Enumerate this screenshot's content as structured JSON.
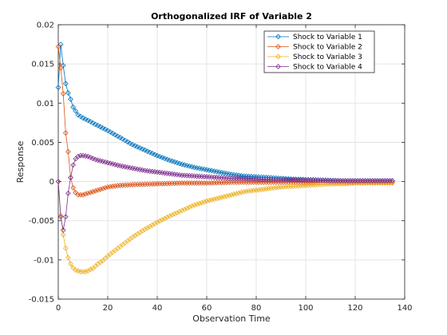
{
  "chart_data": {
    "type": "line",
    "title": "Orthogonalized IRF of Variable 2",
    "xlabel": "Observation Time",
    "ylabel": "Response",
    "xlim": [
      0,
      140
    ],
    "ylim": [
      -0.015,
      0.02
    ],
    "xticks": [
      0,
      20,
      40,
      60,
      80,
      100,
      120,
      140
    ],
    "xtick_labels": [
      "0",
      "20",
      "40",
      "60",
      "80",
      "100",
      "120",
      "140"
    ],
    "yticks": [
      -0.015,
      -0.01,
      -0.005,
      0,
      0.005,
      0.01,
      0.015,
      0.02
    ],
    "ytick_labels": [
      "-0.015",
      "-0.01",
      "-0.005",
      "0",
      "0.005",
      "0.01",
      "0.015",
      "0.02"
    ],
    "grid": true,
    "legend_position": "top-right",
    "marker": "diamond",
    "series": [
      {
        "name": "Shock to Variable 1",
        "color": "#0072BD",
        "x": [
          0,
          1,
          2,
          3,
          4,
          5,
          6,
          8,
          10,
          12,
          15,
          20,
          25,
          30,
          35,
          40,
          45,
          50,
          55,
          60,
          65,
          70,
          75,
          80,
          85,
          90,
          95,
          100,
          105,
          110,
          115,
          120,
          125,
          130,
          135
        ],
        "y": [
          0.012,
          0.0175,
          0.0148,
          0.0125,
          0.0113,
          0.0105,
          0.0095,
          0.0085,
          0.0081,
          0.0078,
          0.0073,
          0.0065,
          0.0056,
          0.0047,
          0.004,
          0.0033,
          0.0027,
          0.0022,
          0.0018,
          0.0015,
          0.0012,
          0.0009,
          0.0007,
          0.0006,
          0.0005,
          0.0004,
          0.0003,
          0.00025,
          0.0002,
          0.00015,
          0.0001,
          0.0001,
          0.0001,
          0.0001,
          0.0001
        ]
      },
      {
        "name": "Shock to Variable 2",
        "color": "#D95319",
        "x": [
          0,
          1,
          2,
          3,
          4,
          5,
          6,
          7,
          8,
          10,
          12,
          15,
          20,
          25,
          30,
          40,
          50,
          60,
          70,
          80,
          90,
          100,
          110,
          120,
          130,
          135
        ],
        "y": [
          0.0172,
          0.0145,
          0.0112,
          0.0062,
          0.0038,
          0.0005,
          -0.0008,
          -0.0014,
          -0.0017,
          -0.0017,
          -0.0015,
          -0.0012,
          -0.0007,
          -0.0005,
          -0.0004,
          -0.0003,
          -0.0002,
          -0.0002,
          -0.0001,
          -0.0001,
          -0.0001,
          -0.0001,
          -0.0001,
          -0.0001,
          -0.0001,
          -0.0001
        ]
      },
      {
        "name": "Shock to Variable 3",
        "color": "#EDB120",
        "x": [
          0,
          1,
          2,
          3,
          4,
          5,
          6,
          7,
          8,
          9,
          10,
          11,
          12,
          13,
          14,
          16,
          18,
          20,
          25,
          30,
          35,
          40,
          45,
          50,
          55,
          60,
          65,
          70,
          75,
          80,
          85,
          90,
          95,
          100,
          105,
          110,
          115,
          120,
          125,
          130,
          135
        ],
        "y": [
          0,
          -0.0043,
          -0.0068,
          -0.0085,
          -0.0097,
          -0.0105,
          -0.011,
          -0.0113,
          -0.0114,
          -0.0115,
          -0.0115,
          -0.0115,
          -0.0114,
          -0.0112,
          -0.0111,
          -0.0105,
          -0.0101,
          -0.0095,
          -0.0083,
          -0.0071,
          -0.0061,
          -0.0052,
          -0.0044,
          -0.0037,
          -0.003,
          -0.0025,
          -0.0021,
          -0.0017,
          -0.0013,
          -0.0011,
          -0.0009,
          -0.0007,
          -0.0006,
          -0.0005,
          -0.0004,
          -0.0003,
          -0.0003,
          -0.0002,
          -0.0002,
          -0.0002,
          -0.0002
        ]
      },
      {
        "name": "Shock to Variable 4",
        "color": "#7E2F8E",
        "x": [
          0,
          1,
          2,
          3,
          4,
          5,
          6,
          7,
          8,
          9,
          10,
          12,
          15,
          20,
          25,
          30,
          35,
          40,
          45,
          50,
          55,
          60,
          70,
          80,
          90,
          100,
          110,
          120,
          130,
          135
        ],
        "y": [
          0,
          -0.0045,
          -0.0062,
          -0.0045,
          -0.0015,
          0.0005,
          0.0021,
          0.0029,
          0.0032,
          0.0033,
          0.0033,
          0.0032,
          0.0028,
          0.0024,
          0.002,
          0.0017,
          0.0014,
          0.0012,
          0.001,
          0.0008,
          0.0007,
          0.0006,
          0.0004,
          0.0003,
          0.0002,
          0.0002,
          0.0001,
          0.0001,
          0.0001,
          0.0001
        ]
      }
    ]
  }
}
